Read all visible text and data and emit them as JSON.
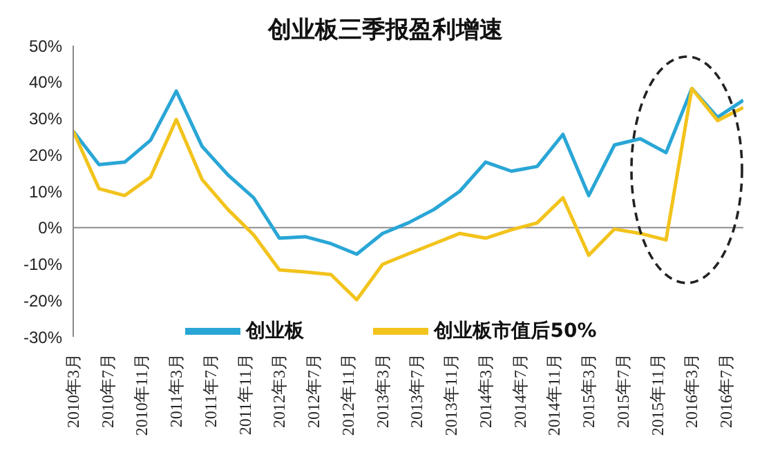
{
  "chart_data": {
    "type": "line",
    "title": "创业板三季报盈利增速",
    "x": [
      "2010-03",
      "2010-06",
      "2010-09",
      "2010-12",
      "2011-03",
      "2011-06",
      "2011-09",
      "2011-12",
      "2012-03",
      "2012-06",
      "2012-09",
      "2012-12",
      "2013-03",
      "2013-06",
      "2013-09",
      "2013-12",
      "2014-03",
      "2014-06",
      "2014-09",
      "2014-12",
      "2015-03",
      "2015-06",
      "2015-09",
      "2015-12",
      "2016-03",
      "2016-06",
      "2016-09"
    ],
    "series": [
      {
        "name": "创业板",
        "color": "#29a6d6",
        "values": [
          26.5,
          17.3,
          18,
          24,
          37.5,
          22.3,
          14.5,
          8.2,
          -2.9,
          -2.5,
          -4.4,
          -7.3,
          -1.6,
          1.3,
          5,
          10,
          18,
          15.5,
          16.8,
          25.6,
          8.8,
          22.7,
          24.4,
          20.6,
          38.2,
          30.3,
          35
        ]
      },
      {
        "name": "创业板市值后50%",
        "color": "#f2c31c",
        "values": [
          26.5,
          10.7,
          8.8,
          13.9,
          29.7,
          13.2,
          5,
          -2,
          -11.6,
          -12.2,
          -12.9,
          -19.8,
          -10.1,
          -7.2,
          -4.4,
          -1.6,
          -2.9,
          -0.6,
          1.3,
          8.2,
          -7.6,
          -0.4,
          -1.6,
          -3.4,
          38.2,
          29.4,
          33
        ]
      }
    ],
    "xlim": [
      "2010-03",
      "2016-09"
    ],
    "xticks": [
      {
        "value": "2010-03",
        "label": "2010年3月"
      },
      {
        "value": "2010-07",
        "label": "2010年7月"
      },
      {
        "value": "2010-11",
        "label": "2010年11月"
      },
      {
        "value": "2011-03",
        "label": "2011年3月"
      },
      {
        "value": "2011-07",
        "label": "2011年7月"
      },
      {
        "value": "2011-11",
        "label": "2011年11月"
      },
      {
        "value": "2012-03",
        "label": "2012年3月"
      },
      {
        "value": "2012-07",
        "label": "2012年7月"
      },
      {
        "value": "2012-11",
        "label": "2012年11月"
      },
      {
        "value": "2013-03",
        "label": "2013年3月"
      },
      {
        "value": "2013-07",
        "label": "2013年7月"
      },
      {
        "value": "2013-11",
        "label": "2013年11月"
      },
      {
        "value": "2014-03",
        "label": "2014年3月"
      },
      {
        "value": "2014-07",
        "label": "2014年7月"
      },
      {
        "value": "2014-11",
        "label": "2014年11月"
      },
      {
        "value": "2015-03",
        "label": "2015年3月"
      },
      {
        "value": "2015-07",
        "label": "2015年7月"
      },
      {
        "value": "2015-11",
        "label": "2015年11月"
      },
      {
        "value": "2016-03",
        "label": "2016年3月"
      },
      {
        "value": "2016-07",
        "label": "2016年7月"
      }
    ],
    "ylim": [
      -30,
      50
    ],
    "yticks": [
      {
        "value": -30,
        "label": "-30%"
      },
      {
        "value": -20,
        "label": "-20%"
      },
      {
        "value": -10,
        "label": "-10%"
      },
      {
        "value": 0,
        "label": "0%"
      },
      {
        "value": 10,
        "label": "10%"
      },
      {
        "value": 20,
        "label": "20%"
      },
      {
        "value": 30,
        "label": "30%"
      },
      {
        "value": 40,
        "label": "40%"
      },
      {
        "value": 50,
        "label": "50%"
      }
    ],
    "ref_lines": [
      {
        "axis": "y",
        "value": 0,
        "color": "#8c8c8c"
      }
    ],
    "grid": false,
    "legend": "bottom",
    "marker": "none",
    "line_style": "solid"
  }
}
